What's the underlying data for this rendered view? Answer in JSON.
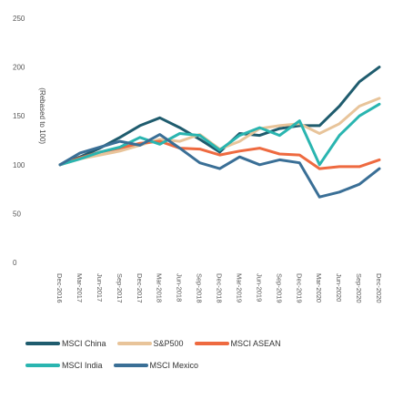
{
  "chart_data": {
    "type": "line",
    "orientation": "x-axis vertical (dates descending downward), values horizontal",
    "xlabel": "",
    "ylabel": "(Rebased to 100)",
    "ylim": [
      0,
      250
    ],
    "yticks": [
      0,
      50,
      100,
      150,
      200,
      250
    ],
    "grid": false,
    "legend_position": "bottom",
    "x": [
      "Dec-2016",
      "Mar-2017",
      "Jun-2017",
      "Sep-2017",
      "Dec-2017",
      "Mar-2018",
      "Jun-2018",
      "Sep-2018",
      "Dec-2018",
      "Mar-2019",
      "Jun-2019",
      "Sep-2019",
      "Dec-2019",
      "Mar-2020",
      "Jun-2020",
      "Sep-2020",
      "Dec-2020"
    ],
    "xtick_labels": [
      "Dec-2016",
      "Mar-2017",
      "Jun-2017",
      "Sep-2017",
      "Dec-2017",
      "Mar-2018",
      "Jun-2018",
      "Sep-2018",
      "Dec-2018",
      "Mar-2019",
      "Jun-2019",
      "Sep-2019",
      "Dec-2019",
      "Mar-2020",
      "Jun-2020",
      "Sep-2020",
      "Dec-2020"
    ],
    "series": [
      {
        "name": "MSCI China",
        "color": "#1f5c6e",
        "values": [
          100,
          108,
          117,
          128,
          140,
          148,
          138,
          126,
          113,
          132,
          130,
          137,
          140,
          140,
          160,
          185,
          200
        ]
      },
      {
        "name": "S&P500",
        "color": "#e8c49a",
        "values": [
          100,
          106,
          110,
          114,
          120,
          126,
          124,
          131,
          116,
          124,
          137,
          140,
          142,
          132,
          142,
          160,
          168
        ]
      },
      {
        "name": "MSCI ASEAN",
        "color": "#ee6a40",
        "values": [
          100,
          107,
          113,
          117,
          122,
          124,
          117,
          116,
          110,
          114,
          117,
          111,
          110,
          96,
          98,
          98,
          105
        ]
      },
      {
        "name": "MSCI India",
        "color": "#2ab5b0",
        "values": [
          100,
          106,
          113,
          118,
          128,
          121,
          132,
          130,
          115,
          130,
          138,
          130,
          145,
          100,
          130,
          150,
          162
        ]
      },
      {
        "name": "MSCI Mexico",
        "color": "#3a6f96",
        "values": [
          100,
          112,
          118,
          124,
          120,
          131,
          117,
          102,
          96,
          108,
          100,
          105,
          102,
          67,
          72,
          80,
          96
        ]
      }
    ]
  },
  "legend": {
    "rows": [
      [
        {
          "label": "MSCI China",
          "color": "#1f5c6e"
        },
        {
          "label": "S&P500",
          "color": "#e8c49a"
        },
        {
          "label": "MSCI ASEAN",
          "color": "#ee6a40"
        }
      ],
      [
        {
          "label": "MSCI India",
          "color": "#2ab5b0"
        },
        {
          "label": "MSCI Mexico",
          "color": "#3a6f96"
        }
      ]
    ]
  }
}
